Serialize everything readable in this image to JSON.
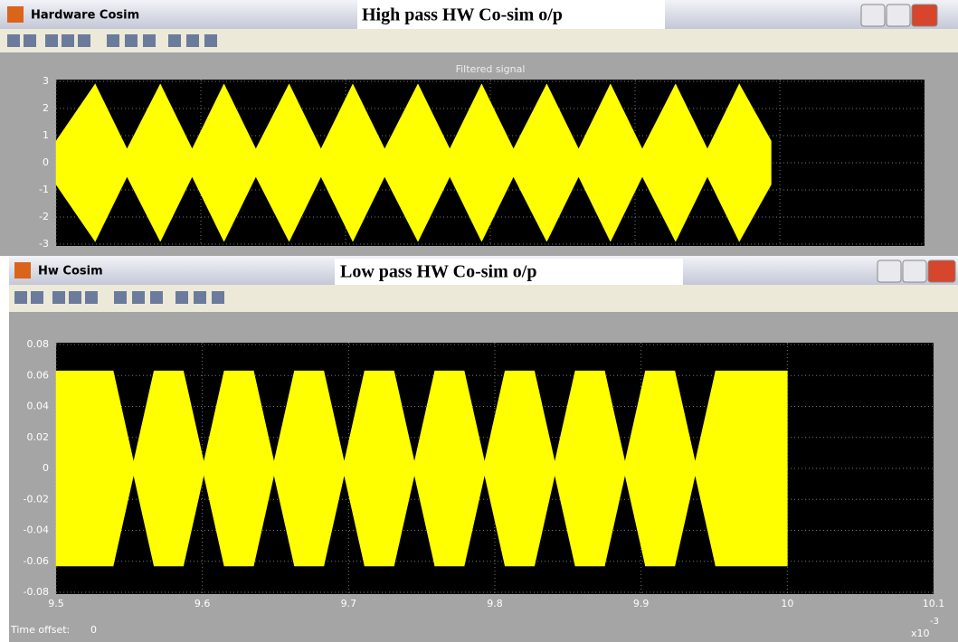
{
  "windows": [
    {
      "title": "Hardware Cosim",
      "caption": "High pass HW Co-sim o/p"
    },
    {
      "title": "Hw Cosim",
      "caption": "Low pass HW Co-sim o/p",
      "status": {
        "label": "Time offset:",
        "value": 0
      }
    }
  ],
  "chart_data": [
    {
      "type": "area",
      "title": "Filtered signal",
      "x": [
        9.5,
        9.527,
        9.549,
        9.572,
        9.594,
        9.616,
        9.638,
        9.661,
        9.683,
        9.705,
        9.727,
        9.75,
        9.772,
        9.794,
        9.816,
        9.839,
        9.861,
        9.883,
        9.905,
        9.928,
        9.95,
        9.972,
        9.994
      ],
      "series": [
        {
          "color": "#ffff00",
          "values": [
            0.8,
            2.9,
            0.5,
            2.9,
            0.5,
            2.9,
            0.5,
            2.9,
            0.5,
            2.9,
            0.5,
            2.9,
            0.5,
            2.9,
            0.5,
            2.9,
            0.5,
            2.9,
            0.5,
            2.9,
            0.5,
            2.9,
            0.8
          ]
        },
        {
          "color": "#ffff00",
          "values": [
            -0.8,
            -2.9,
            -0.5,
            -2.9,
            -0.5,
            -2.9,
            -0.5,
            -2.9,
            -0.5,
            -2.9,
            -0.5,
            -2.9,
            -0.5,
            -2.9,
            -0.5,
            -2.9,
            -0.5,
            -2.9,
            -0.5,
            -2.9,
            -0.5,
            -2.9,
            -0.8
          ]
        }
      ],
      "xlim": [
        9.5,
        10.1
      ],
      "xticks": [
        9.5,
        9.6,
        9.7,
        9.8,
        9.9,
        10,
        10.1
      ],
      "show_xtick_labels": false,
      "ylim": [
        -3,
        3
      ],
      "yticks": [
        3,
        2,
        1,
        0,
        -1,
        -2,
        -3
      ],
      "grid": true
    },
    {
      "type": "area",
      "x": [
        9.5,
        9.539,
        9.553,
        9.567,
        9.587,
        9.601,
        9.615,
        9.635,
        9.649,
        9.663,
        9.683,
        9.697,
        9.711,
        9.731,
        9.745,
        9.759,
        9.779,
        9.793,
        9.807,
        9.827,
        9.841,
        9.855,
        9.875,
        9.889,
        9.903,
        9.923,
        9.937,
        9.951,
        10
      ],
      "series": [
        {
          "color": "#ffff00",
          "values": [
            0.063,
            0.063,
            0.004,
            0.063,
            0.063,
            0.004,
            0.063,
            0.063,
            0.004,
            0.063,
            0.063,
            0.004,
            0.063,
            0.063,
            0.004,
            0.063,
            0.063,
            0.004,
            0.063,
            0.063,
            0.004,
            0.063,
            0.063,
            0.004,
            0.063,
            0.063,
            0.004,
            0.063,
            0.063
          ]
        },
        {
          "color": "#ffff00",
          "values": [
            -0.063,
            -0.063,
            -0.004,
            -0.063,
            -0.063,
            -0.004,
            -0.063,
            -0.063,
            -0.004,
            -0.063,
            -0.063,
            -0.004,
            -0.063,
            -0.063,
            -0.004,
            -0.063,
            -0.063,
            -0.004,
            -0.063,
            -0.063,
            -0.004,
            -0.063,
            -0.063,
            -0.004,
            -0.063,
            -0.063,
            -0.004,
            -0.063,
            -0.063
          ]
        }
      ],
      "xlim": [
        9.5,
        10.1
      ],
      "xticks": [
        9.5,
        9.6,
        9.7,
        9.8,
        9.9,
        10,
        10.1
      ],
      "show_xtick_labels": true,
      "x_multiplier": {
        "base": "x10",
        "exponent": "-3"
      },
      "ylim": [
        -0.08,
        0.08
      ],
      "yticks": [
        0.08,
        0.06,
        0.04,
        0.02,
        0,
        -0.02,
        -0.04,
        -0.06,
        -0.08
      ],
      "grid": true
    }
  ]
}
